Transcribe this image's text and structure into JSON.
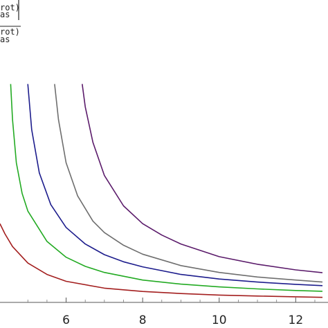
{
  "chart_data": {
    "type": "line",
    "title": "",
    "xlabel": "",
    "ylabel_fragments": [
      "rot)",
      "as",
      "rot)",
      "as"
    ],
    "x_ticks": [
      6,
      8,
      10,
      12
    ],
    "xlim": [
      4.2,
      12.7
    ],
    "ylim": [
      0,
      10
    ],
    "grid": false,
    "series": [
      {
        "color": "#a31e1e",
        "x": [
          4.27,
          4.4,
          4.6,
          5.0,
          5.5,
          6.0,
          7.0,
          8.0,
          9.0,
          10.0,
          11.0,
          12.0,
          12.7
        ],
        "y": [
          3.1,
          2.7,
          2.2,
          1.55,
          1.1,
          0.83,
          0.56,
          0.43,
          0.35,
          0.29,
          0.25,
          0.22,
          0.2
        ]
      },
      {
        "color": "#22aa22",
        "x": [
          4.55,
          4.6,
          4.7,
          4.85,
          5.0,
          5.5,
          6.0,
          6.5,
          7.0,
          8.0,
          9.0,
          10.0,
          11.0,
          12.0,
          12.7
        ],
        "y": [
          8.6,
          7.2,
          5.5,
          4.3,
          3.6,
          2.4,
          1.78,
          1.42,
          1.18,
          0.88,
          0.72,
          0.61,
          0.53,
          0.47,
          0.44
        ]
      },
      {
        "color": "#1c1c8c",
        "x": [
          5.0,
          5.1,
          5.3,
          5.6,
          6.0,
          6.5,
          7.0,
          7.5,
          8.0,
          9.0,
          10.0,
          11.0,
          12.0,
          12.7
        ],
        "y": [
          8.6,
          6.8,
          5.1,
          3.85,
          2.95,
          2.3,
          1.88,
          1.6,
          1.4,
          1.1,
          0.92,
          0.8,
          0.71,
          0.66
        ]
      },
      {
        "color": "#6e6e6e",
        "x": [
          5.7,
          5.8,
          6.0,
          6.3,
          6.7,
          7.0,
          7.5,
          8.0,
          9.0,
          10.0,
          11.0,
          12.0,
          12.7
        ],
        "y": [
          8.6,
          7.2,
          5.5,
          4.2,
          3.2,
          2.75,
          2.25,
          1.9,
          1.45,
          1.18,
          1.0,
          0.88,
          0.8
        ]
      },
      {
        "color": "#5a1a6a",
        "x": [
          6.42,
          6.5,
          6.7,
          7.0,
          7.5,
          8.0,
          8.5,
          9.0,
          10.0,
          11.0,
          12.0,
          12.7
        ],
        "y": [
          8.6,
          7.7,
          6.3,
          5.0,
          3.8,
          3.1,
          2.65,
          2.3,
          1.8,
          1.5,
          1.28,
          1.17
        ]
      }
    ]
  }
}
